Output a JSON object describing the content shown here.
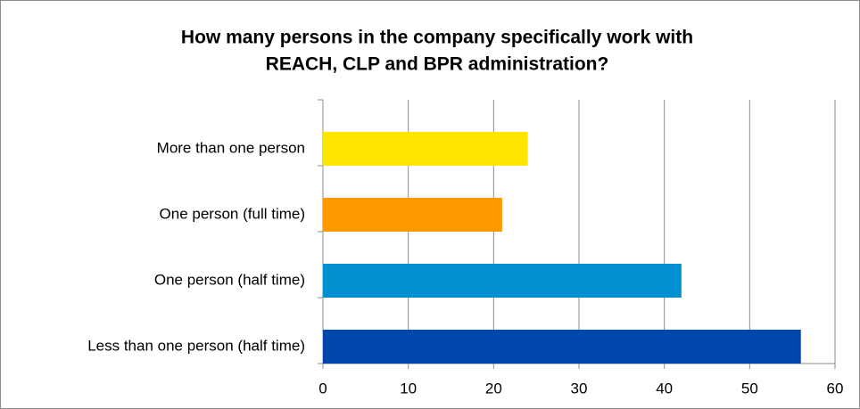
{
  "chart_data": {
    "type": "bar",
    "orientation": "horizontal",
    "title": [
      "How many persons in the company specifically work with",
      "REACH, CLP and BPR administration?"
    ],
    "categories": [
      "More than one person",
      "One person (full time)",
      "One person (half time)",
      "Less than one person (half time)"
    ],
    "values": [
      24,
      21,
      42,
      56
    ],
    "colors": [
      "#ffe600",
      "#ff9900",
      "#0090d0",
      "#0047ab"
    ],
    "xlim": [
      0,
      60
    ],
    "xticks": [
      0,
      10,
      20,
      30,
      40,
      50,
      60
    ],
    "grid": true
  }
}
